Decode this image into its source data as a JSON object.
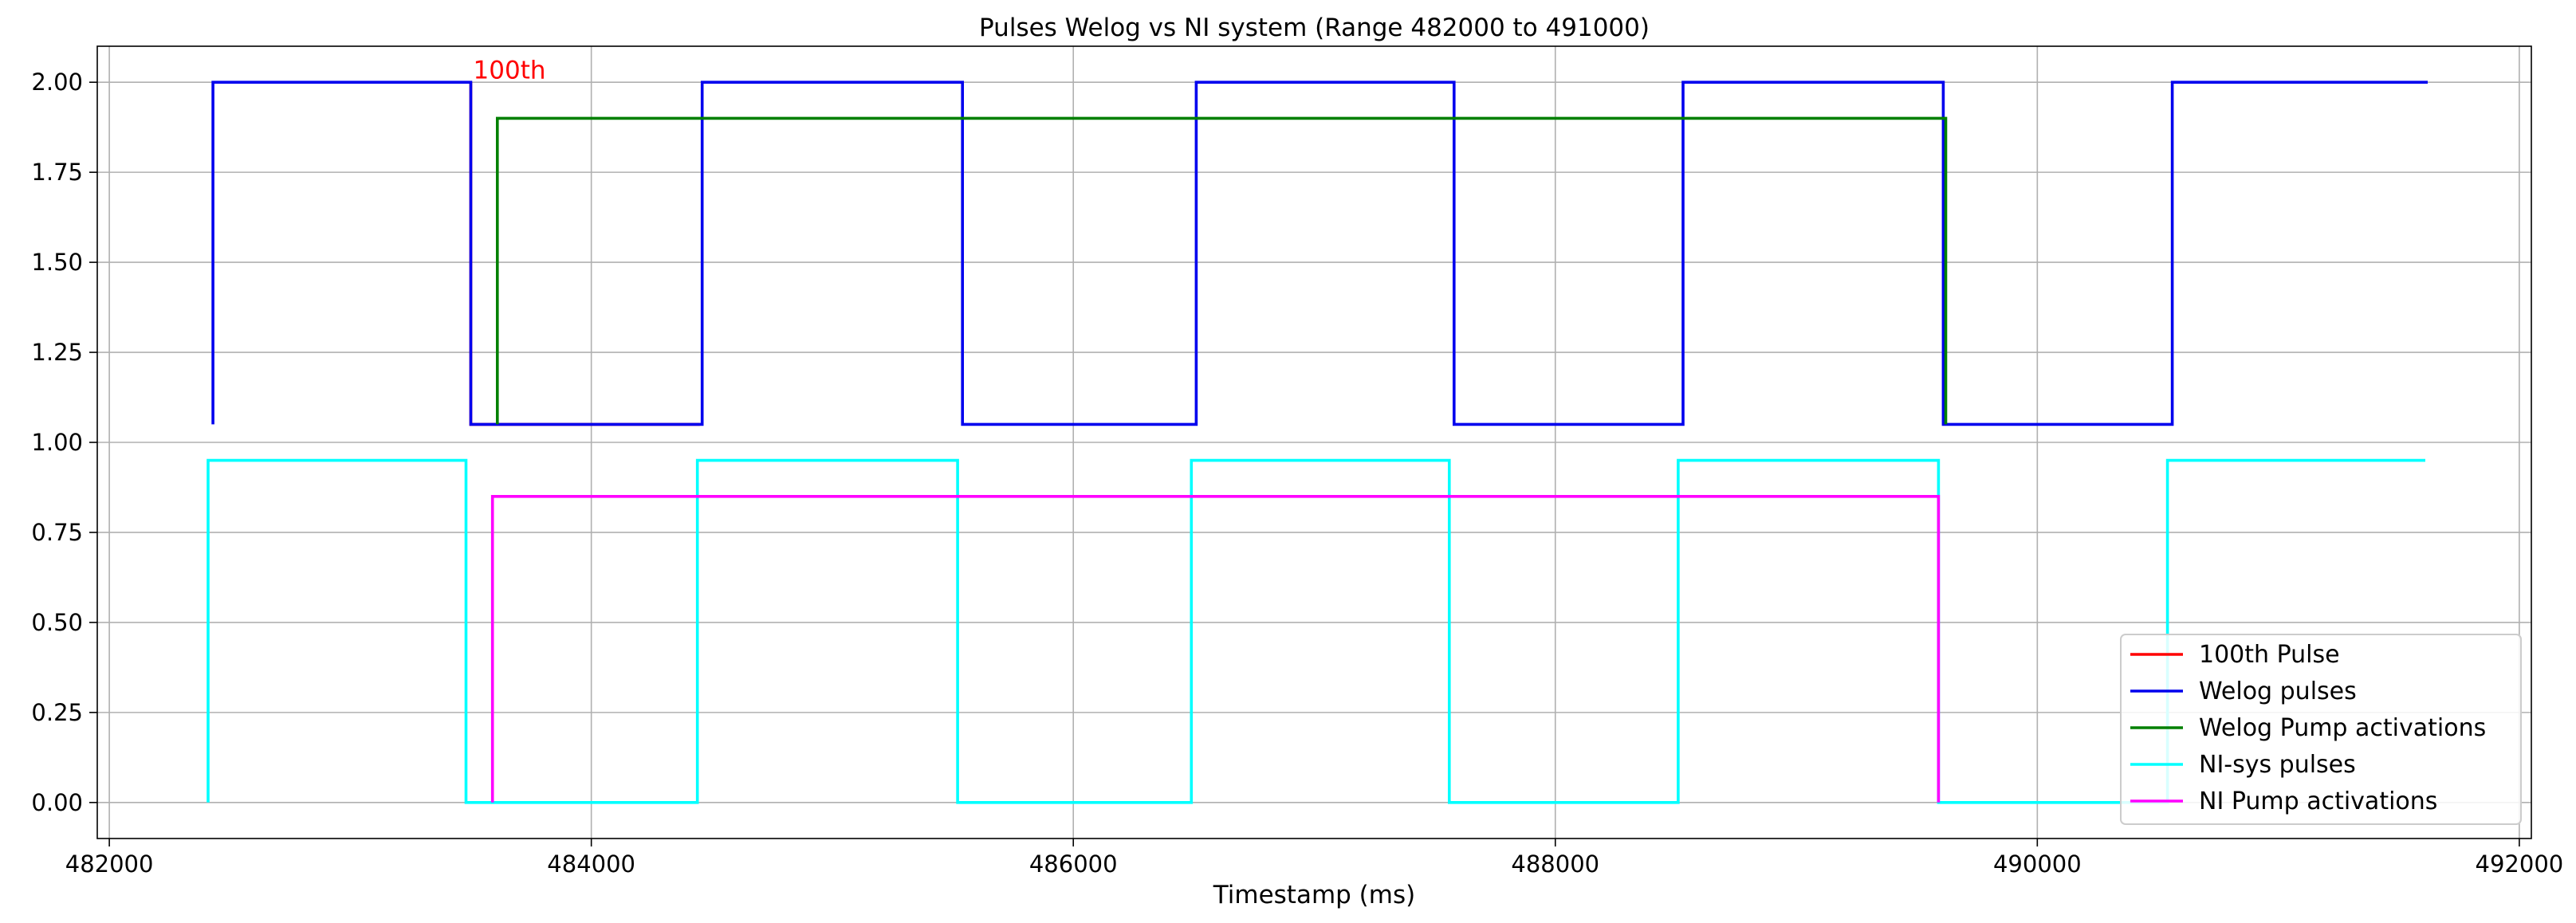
{
  "chart_data": {
    "type": "line",
    "title": "Pulses Welog vs NI system (Range 482000 to 491000)",
    "xlabel": "Timestamp (ms)",
    "ylabel": "",
    "xlim": [
      481950,
      492050
    ],
    "ylim": [
      -0.1,
      2.1
    ],
    "x_ticks": [
      482000,
      484000,
      486000,
      488000,
      490000,
      492000
    ],
    "x_tick_labels": [
      "482000",
      "484000",
      "486000",
      "488000",
      "490000",
      "492000"
    ],
    "y_ticks": [
      0.0,
      0.25,
      0.5,
      0.75,
      1.0,
      1.25,
      1.5,
      1.75,
      2.0
    ],
    "y_tick_labels": [
      "0.00",
      "0.25",
      "0.50",
      "0.75",
      "1.00",
      "1.25",
      "1.50",
      "1.75",
      "2.00"
    ],
    "grid": true,
    "legend_position": "bottom-right",
    "annotations": [
      {
        "text": "100th",
        "x": 483510,
        "y": 2.01,
        "color": "#ff0000"
      }
    ],
    "series": [
      {
        "name": "100th Pulse",
        "color": "#ff0000",
        "points": [
          [
            483500,
            2.0
          ],
          [
            483500,
            1.05
          ],
          [
            484450,
            1.05
          ]
        ]
      },
      {
        "name": "Welog pulses",
        "color": "#0000ee",
        "points": [
          [
            482430,
            1.05
          ],
          [
            482430,
            2.0
          ],
          [
            483500,
            2.0
          ],
          [
            483500,
            1.05
          ],
          [
            484460,
            1.05
          ],
          [
            484460,
            2.0
          ],
          [
            485540,
            2.0
          ],
          [
            485540,
            1.05
          ],
          [
            486510,
            1.05
          ],
          [
            486510,
            2.0
          ],
          [
            487580,
            2.0
          ],
          [
            487580,
            1.05
          ],
          [
            488530,
            1.05
          ],
          [
            488530,
            2.0
          ],
          [
            489610,
            2.0
          ],
          [
            489610,
            1.05
          ],
          [
            490560,
            1.05
          ],
          [
            490560,
            2.0
          ],
          [
            491620,
            2.0
          ]
        ]
      },
      {
        "name": "Welog Pump activations",
        "color": "#008000",
        "points": [
          [
            483610,
            1.05
          ],
          [
            483610,
            1.9
          ],
          [
            489620,
            1.9
          ],
          [
            489620,
            1.05
          ]
        ]
      },
      {
        "name": "NI-sys pulses",
        "color": "#00ffff",
        "points": [
          [
            482410,
            0.0
          ],
          [
            482410,
            0.95
          ],
          [
            483480,
            0.95
          ],
          [
            483480,
            0.0
          ],
          [
            484440,
            0.0
          ],
          [
            484440,
            0.95
          ],
          [
            485520,
            0.95
          ],
          [
            485520,
            0.0
          ],
          [
            486490,
            0.0
          ],
          [
            486490,
            0.95
          ],
          [
            487560,
            0.95
          ],
          [
            487560,
            0.0
          ],
          [
            488510,
            0.0
          ],
          [
            488510,
            0.95
          ],
          [
            489590,
            0.95
          ],
          [
            489590,
            0.0
          ],
          [
            490540,
            0.0
          ],
          [
            490540,
            0.95
          ],
          [
            491610,
            0.95
          ]
        ]
      },
      {
        "name": "NI Pump activations",
        "color": "#ff00ff",
        "points": [
          [
            483590,
            0.0
          ],
          [
            483590,
            0.85
          ],
          [
            489590,
            0.85
          ],
          [
            489590,
            0.0
          ]
        ]
      }
    ]
  }
}
